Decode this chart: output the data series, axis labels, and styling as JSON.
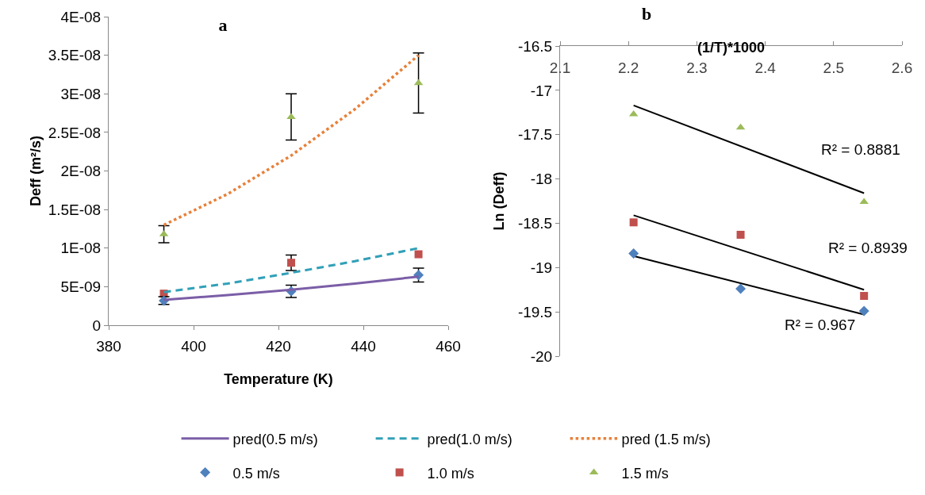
{
  "chart_data": [
    {
      "type": "scatter",
      "title": "a",
      "xlabel": "Temperature (K)",
      "ylabel": "Deff (m²/s)",
      "xlim": [
        380,
        460
      ],
      "xticks": [
        380,
        400,
        420,
        440,
        460
      ],
      "ylim": [
        0,
        4e-08
      ],
      "yticks": [
        {
          "value": 0,
          "label": "0"
        },
        {
          "value": 5e-09,
          "label": "5E-09"
        },
        {
          "value": 1e-08,
          "label": "1E-08"
        },
        {
          "value": 1.5e-08,
          "label": "1.5E-08"
        },
        {
          "value": 2e-08,
          "label": "2E-08"
        },
        {
          "value": 2.5e-08,
          "label": "2.5E-08"
        },
        {
          "value": 3e-08,
          "label": "3E-08"
        },
        {
          "value": 3.5e-08,
          "label": "3.5E-08"
        },
        {
          "value": 4e-08,
          "label": "4E-08"
        }
      ],
      "grid": false,
      "legend": "bottom",
      "series": [
        {
          "name": "pred(0.5 m/s)",
          "type": "line",
          "line_style": "solid",
          "color": "#7b5ea7",
          "x": [
            393,
            408,
            423,
            438,
            453
          ],
          "values": [
            3.3e-09,
            3.9e-09,
            4.6e-09,
            5.4e-09,
            6.3e-09
          ]
        },
        {
          "name": "pred(1.0 m/s)",
          "type": "line",
          "line_style": "dashed",
          "color": "#31a0b8",
          "x": [
            393,
            408,
            423,
            438,
            453
          ],
          "values": [
            4.3e-09,
            5.4e-09,
            6.8e-09,
            8.3e-09,
            1e-08
          ]
        },
        {
          "name": "pred (1.5 m/s)",
          "type": "line",
          "line_style": "dotted",
          "color": "#e8803a",
          "x": [
            393,
            408,
            423,
            438,
            453
          ],
          "values": [
            1.3e-08,
            1.7e-08,
            2.2e-08,
            2.8e-08,
            3.5e-08
          ]
        },
        {
          "name": "0.5 m/s",
          "marker": "diamond",
          "color": "#4f81bd",
          "x": [
            393,
            423,
            453
          ],
          "values": [
            3.2e-09,
            4.4e-09,
            6.5e-09
          ],
          "errors": [
            5e-10,
            8e-10,
            9e-10
          ]
        },
        {
          "name": "1.0 m/s",
          "marker": "square",
          "color": "#c0504d",
          "x": [
            393,
            423,
            453
          ],
          "values": [
            4.1e-09,
            8.1e-09,
            9.2e-09
          ],
          "errors": [
            null,
            1e-09,
            null
          ]
        },
        {
          "name": "1.5 m/s",
          "marker": "triangle",
          "color": "#9bbb59",
          "x": [
            393,
            423,
            453
          ],
          "values": [
            1.18e-08,
            2.7e-08,
            3.14e-08
          ],
          "errors": [
            1.1e-09,
            3e-09,
            3.9e-09
          ]
        }
      ]
    },
    {
      "type": "scatter",
      "title": "b",
      "xlabel": "(1/T)*1000",
      "ylabel": "Ln (Deff)",
      "xlim": [
        2.1,
        2.6
      ],
      "xticks": [
        2.1,
        2.2,
        2.3,
        2.4,
        2.5,
        2.6
      ],
      "ylim": [
        -20,
        -16.5
      ],
      "yticks": [
        -20,
        -19.5,
        -19,
        -18.5,
        -18,
        -17.5,
        -17,
        -16.5
      ],
      "grid": false,
      "legend": false,
      "series": [
        {
          "marker": "diamond",
          "color": "#4f81bd",
          "x": [
            2.2075,
            2.364,
            2.5445
          ],
          "values": [
            -18.84,
            -19.24,
            -19.49
          ]
        },
        {
          "marker": "square",
          "color": "#c0504d",
          "x": [
            2.2075,
            2.364,
            2.5445
          ],
          "values": [
            -18.49,
            -18.63,
            -19.32
          ]
        },
        {
          "marker": "triangle",
          "color": "#9bbb59",
          "x": [
            2.2075,
            2.364,
            2.5445
          ],
          "values": [
            -17.27,
            -17.42,
            -18.26
          ]
        },
        {
          "type": "line",
          "line_style": "solid",
          "color": "#000000",
          "x": [
            2.2075,
            2.5445
          ],
          "values": [
            -17.17,
            -18.16
          ]
        },
        {
          "type": "line",
          "line_style": "solid",
          "color": "#000000",
          "x": [
            2.2075,
            2.5445
          ],
          "values": [
            -18.41,
            -19.25
          ]
        },
        {
          "type": "line",
          "line_style": "solid",
          "color": "#000000",
          "x": [
            2.2075,
            2.5445
          ],
          "values": [
            -18.87,
            -19.53
          ]
        }
      ],
      "annotations": [
        "R² = 0.8881",
        "R² = 0.8939",
        "R² = 0.967"
      ]
    }
  ]
}
